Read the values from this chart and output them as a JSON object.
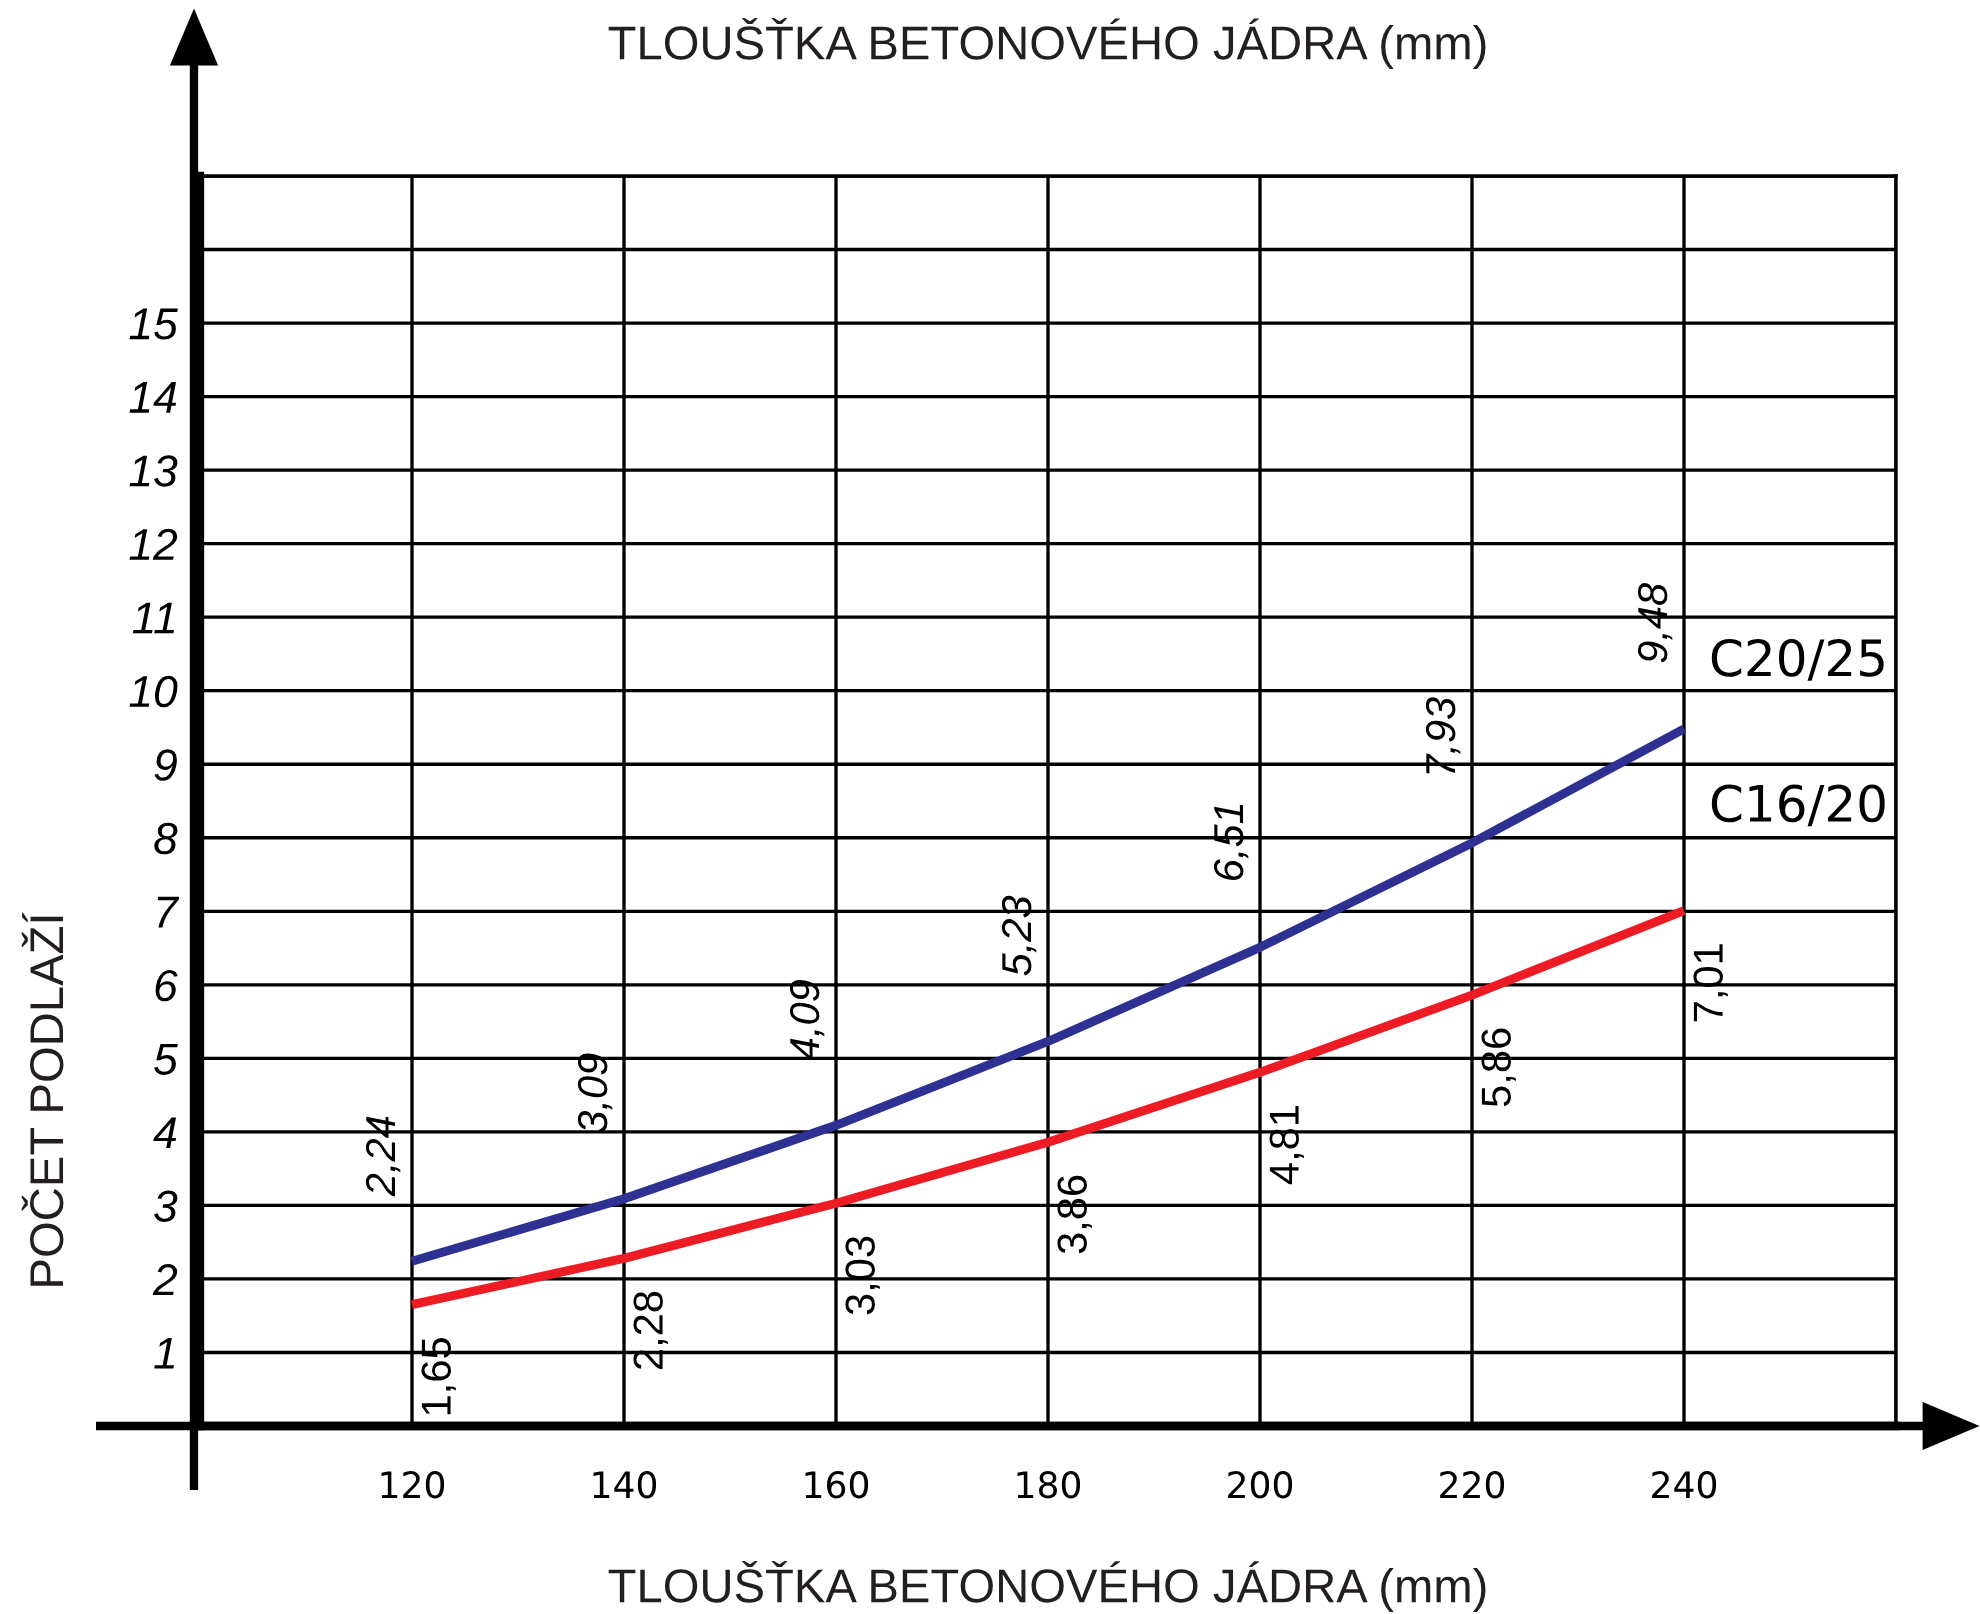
{
  "chart_data": {
    "type": "line",
    "title": "TLOUŠŤKA BETONOVÉHO JÁDRA (mm)",
    "xlabel": "TLOUŠŤKA BETONOVÉHO JÁDRA (mm)",
    "ylabel": "POČET PODLAŽÍ",
    "x": [
      120,
      140,
      160,
      180,
      200,
      220,
      240
    ],
    "series": [
      {
        "name": "C20/25",
        "color": "#2e3192",
        "values": [
          2.24,
          3.09,
          4.09,
          5.23,
          6.51,
          7.93,
          9.48
        ],
        "value_labels": [
          "2,24",
          "3,09",
          "4,09",
          "5,23",
          "6,51",
          "7,93",
          "9,48"
        ]
      },
      {
        "name": "C16/20",
        "color": "#ed1c24",
        "values": [
          1.65,
          2.28,
          3.03,
          3.86,
          4.81,
          5.86,
          7.01
        ],
        "value_labels": [
          "1,65",
          "2,28",
          "3,03",
          "3,86",
          "4,81",
          "5,86",
          "7,01"
        ]
      }
    ],
    "xlim": [
      100,
      260
    ],
    "xticks": [
      {
        "value": 100,
        "label": null
      },
      120,
      140,
      160,
      180,
      200,
      220,
      240,
      {
        "value": 260,
        "label": null
      }
    ],
    "ylim": [
      0,
      17
    ],
    "yticks": [
      1,
      2,
      3,
      4,
      5,
      6,
      7,
      8,
      9,
      10,
      11,
      12,
      13,
      14,
      15,
      {
        "value": 16,
        "label": null
      },
      {
        "value": 17,
        "label": null
      }
    ],
    "grid": true
  }
}
